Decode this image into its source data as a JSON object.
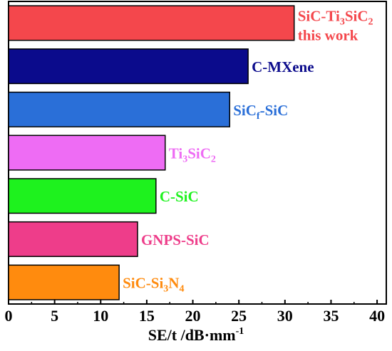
{
  "chart_data": {
    "type": "bar",
    "orientation": "horizontal",
    "xlabel": "SE/t /dB·mm",
    "xlabel_sup": "-1",
    "xlim": [
      0,
      41
    ],
    "xticks": [
      "0",
      "5",
      "10",
      "15",
      "20",
      "25",
      "30",
      "35",
      "40"
    ],
    "grid": false,
    "bars": [
      {
        "label": "SiC-Ti",
        "label_parts": [
          [
            "SiC-Ti",
            ""
          ],
          [
            "3",
            "sub"
          ],
          [
            "SiC",
            ""
          ],
          [
            "2",
            "sub"
          ]
        ],
        "label_line2": "this work",
        "value": 31,
        "color": "#f4474c",
        "label_color": "#f4474c"
      },
      {
        "label": "C-MXene",
        "label_parts": [
          [
            "C-MXene",
            ""
          ]
        ],
        "value": 26,
        "color": "#0b0b8c",
        "label_color": "#0b0b8c"
      },
      {
        "label": "SiCf-SiC",
        "label_parts": [
          [
            "SiC",
            ""
          ],
          [
            "f",
            "sub"
          ],
          [
            "-SiC",
            ""
          ]
        ],
        "value": 24,
        "color": "#2a6fd8",
        "label_color": "#2a6fd8"
      },
      {
        "label": "Ti3SiC2",
        "label_parts": [
          [
            "Ti",
            ""
          ],
          [
            "3",
            "sub"
          ],
          [
            "SiC",
            ""
          ],
          [
            "2",
            "sub"
          ]
        ],
        "value": 17,
        "color": "#ee6cf4",
        "label_color": "#ee6cf4"
      },
      {
        "label": "C-SiC",
        "label_parts": [
          [
            "C-SiC",
            ""
          ]
        ],
        "value": 16,
        "color": "#1ef21e",
        "label_color": "#1ef21e"
      },
      {
        "label": "GNPS-SiC",
        "label_parts": [
          [
            "GNPS-SiC",
            ""
          ]
        ],
        "value": 14,
        "color": "#ee3d8a",
        "label_color": "#ee3d8a"
      },
      {
        "label": "SiC-Si3N4",
        "label_parts": [
          [
            "SiC-Si",
            ""
          ],
          [
            "3",
            "sub"
          ],
          [
            "N",
            ""
          ],
          [
            "4",
            "sub"
          ]
        ],
        "value": 12,
        "color": "#ff8b0e",
        "label_color": "#ff8b0e"
      }
    ]
  }
}
